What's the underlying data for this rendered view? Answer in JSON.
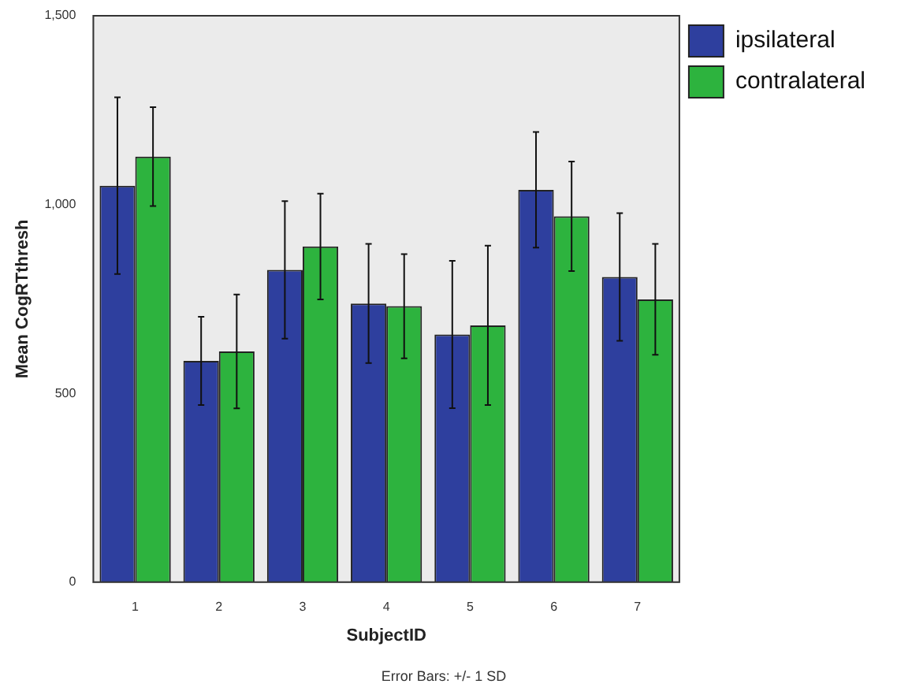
{
  "chart_data": {
    "type": "bar",
    "xlabel": "SubjectID",
    "ylabel": "Mean CogRTthresh",
    "categories": [
      "1",
      "2",
      "3",
      "4",
      "5",
      "6",
      "7"
    ],
    "series": [
      {
        "name": "ipsilateral",
        "color": "#2e3f9e",
        "values": [
          1050,
          586,
          827,
          738,
          656,
          1039,
          808
        ],
        "errors": [
          234,
          117,
          182,
          158,
          195,
          153,
          169
        ]
      },
      {
        "name": "contralateral",
        "color": "#2db33e",
        "values": [
          1127,
          611,
          889,
          731,
          680,
          969,
          749
        ],
        "errors": [
          131,
          151,
          140,
          138,
          211,
          145,
          147
        ]
      }
    ],
    "ylim": [
      0,
      1500
    ],
    "yticks": [
      0,
      {
        "value": 500,
        "label": "500"
      },
      {
        "value": 1000,
        "label": "1,000"
      },
      {
        "value": 1500,
        "label": "1,500"
      }
    ],
    "grid": false,
    "legend": "top right",
    "annotations": [
      "Error Bars: +/- 1 SD"
    ]
  }
}
